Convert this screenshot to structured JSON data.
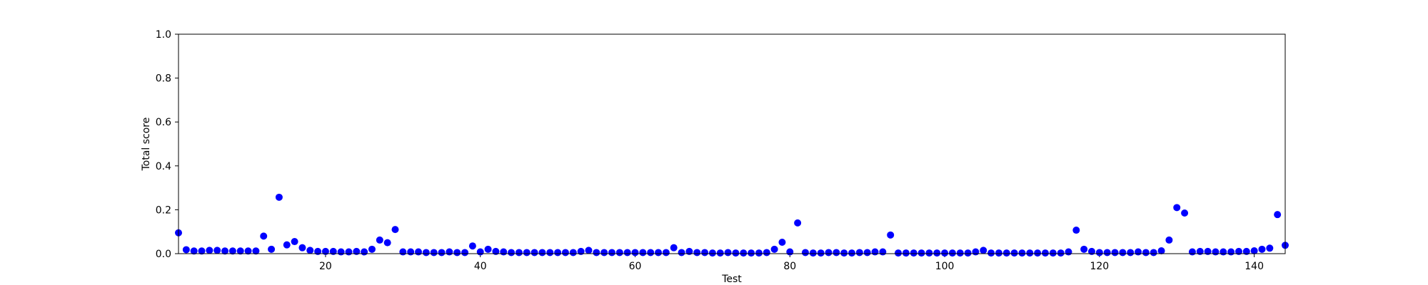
{
  "chart_data": {
    "type": "scatter",
    "title": "",
    "xlabel": "Test",
    "ylabel": "Total score",
    "xlim": [
      1,
      144
    ],
    "ylim": [
      0.0,
      1.0
    ],
    "x_ticks": [
      20,
      40,
      60,
      80,
      100,
      120,
      140
    ],
    "x_tick_labels": [
      "20",
      "40",
      "60",
      "80",
      "100",
      "120",
      "140"
    ],
    "y_ticks": [
      0.0,
      0.2,
      0.4,
      0.6,
      0.8,
      1.0
    ],
    "y_tick_labels": [
      "0.0",
      "0.2",
      "0.4",
      "0.6",
      "0.8",
      "1.0"
    ],
    "grid": false,
    "marker_color": "#0000ff",
    "series": [
      {
        "x": [
          1,
          2,
          3,
          4,
          5,
          6,
          7,
          8,
          9,
          10,
          11,
          12,
          13,
          14,
          15,
          16,
          17,
          18,
          19,
          20,
          21,
          22,
          23,
          24,
          25,
          26,
          27,
          28,
          29,
          30,
          31,
          32,
          33,
          34,
          35,
          36,
          37,
          38,
          39,
          40,
          41,
          42,
          43,
          44,
          45,
          46,
          47,
          48,
          49,
          50,
          51,
          52,
          53,
          54,
          55,
          56,
          57,
          58,
          59,
          60,
          61,
          62,
          63,
          64,
          65,
          66,
          67,
          68,
          69,
          70,
          71,
          72,
          73,
          74,
          75,
          76,
          77,
          78,
          79,
          80,
          81,
          82,
          83,
          84,
          85,
          86,
          87,
          88,
          89,
          90,
          91,
          92,
          93,
          94,
          95,
          96,
          97,
          98,
          99,
          100,
          101,
          102,
          103,
          104,
          105,
          106,
          107,
          108,
          109,
          110,
          111,
          112,
          113,
          114,
          115,
          116,
          117,
          118,
          119,
          120,
          121,
          122,
          123,
          124,
          125,
          126,
          127,
          128,
          129,
          130,
          131,
          132,
          133,
          134,
          135,
          136,
          137,
          138,
          139,
          140,
          141,
          142,
          143,
          144
        ],
        "y": [
          0.095,
          0.018,
          0.012,
          0.012,
          0.015,
          0.015,
          0.012,
          0.012,
          0.012,
          0.012,
          0.012,
          0.08,
          0.02,
          0.257,
          0.04,
          0.055,
          0.027,
          0.015,
          0.01,
          0.01,
          0.01,
          0.008,
          0.008,
          0.01,
          0.008,
          0.02,
          0.062,
          0.05,
          0.11,
          0.008,
          0.008,
          0.008,
          0.005,
          0.005,
          0.005,
          0.008,
          0.005,
          0.005,
          0.035,
          0.008,
          0.02,
          0.01,
          0.008,
          0.005,
          0.005,
          0.005,
          0.005,
          0.005,
          0.005,
          0.005,
          0.005,
          0.005,
          0.01,
          0.015,
          0.005,
          0.005,
          0.005,
          0.005,
          0.005,
          0.005,
          0.005,
          0.005,
          0.005,
          0.005,
          0.027,
          0.005,
          0.01,
          0.005,
          0.005,
          0.003,
          0.003,
          0.005,
          0.003,
          0.003,
          0.003,
          0.003,
          0.005,
          0.02,
          0.052,
          0.008,
          0.14,
          0.005,
          0.003,
          0.003,
          0.005,
          0.005,
          0.003,
          0.003,
          0.005,
          0.005,
          0.008,
          0.008,
          0.085,
          0.003,
          0.003,
          0.003,
          0.003,
          0.003,
          0.003,
          0.003,
          0.003,
          0.003,
          0.003,
          0.008,
          0.015,
          0.003,
          0.003,
          0.003,
          0.003,
          0.003,
          0.003,
          0.003,
          0.003,
          0.003,
          0.003,
          0.008,
          0.107,
          0.02,
          0.01,
          0.005,
          0.005,
          0.005,
          0.005,
          0.005,
          0.008,
          0.005,
          0.005,
          0.013,
          0.062,
          0.21,
          0.185,
          0.008,
          0.01,
          0.01,
          0.008,
          0.008,
          0.008,
          0.01,
          0.01,
          0.013,
          0.02,
          0.025,
          0.178,
          0.038
        ]
      }
    ]
  }
}
